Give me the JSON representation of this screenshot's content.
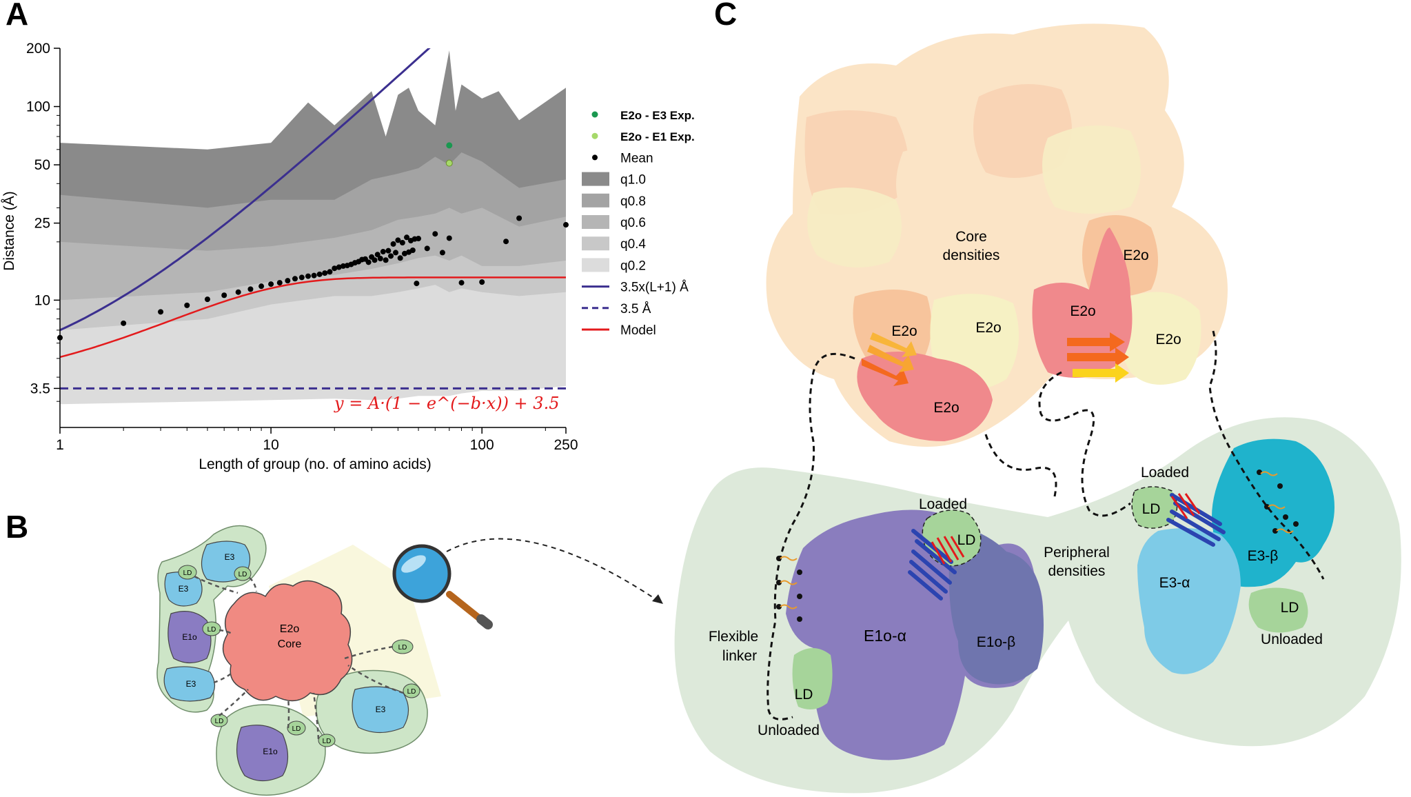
{
  "panels": {
    "a": "A",
    "b": "B",
    "c": "C"
  },
  "chart_data": {
    "type": "line",
    "xlabel": "Length of group (no. of amino acids)",
    "ylabel": "Distance (Å)",
    "xscale": "log",
    "yscale": "log",
    "xlim": [
      1,
      250
    ],
    "ylim": [
      2.2,
      200
    ],
    "xticks": [
      1,
      10,
      100,
      250
    ],
    "xtick_labels": [
      "1",
      "10",
      "100",
      "250"
    ],
    "yticks": [
      3.5,
      10,
      25,
      50,
      100,
      200
    ],
    "ytick_labels": [
      "3.5",
      "10",
      "25",
      "50",
      "100",
      "200"
    ],
    "formula": "y = A·(1 − e^(−b·x)) + 3.5",
    "legend_position": "right",
    "legend": [
      "E2o - E3 Exp.",
      "E2o - E1 Exp.",
      "Mean",
      "q1.0",
      "q0.8",
      "q0.6",
      "q0.4",
      "q0.2",
      "3.5x(L+1) Å",
      "3.5 Å",
      "Model"
    ],
    "colors": {
      "q1.0": "#8a8a8a",
      "q0.8": "#a3a3a3",
      "q0.6": "#b5b5b5",
      "q0.4": "#c8c8c8",
      "q0.2": "#dcdcdc",
      "contour": "#3b2f8f",
      "model": "#e31a1c",
      "e3": "#1a9850",
      "e1": "#a6d96a"
    },
    "series": [
      {
        "name": "Mean",
        "x": [
          1,
          2,
          3,
          4,
          5,
          6,
          7,
          8,
          9,
          10,
          11,
          12,
          13,
          14,
          15,
          16,
          17,
          18,
          19,
          20,
          21,
          22,
          23,
          24,
          25,
          26,
          27,
          28,
          29,
          30,
          31,
          32,
          33,
          34,
          35,
          36,
          37,
          38,
          39,
          40,
          41,
          42,
          43,
          44,
          45,
          46,
          47,
          48,
          49,
          50,
          55,
          60,
          65,
          70,
          80,
          100,
          130,
          150,
          250
        ],
        "y": [
          6.4,
          7.6,
          8.7,
          9.4,
          10.1,
          10.6,
          11.0,
          11.4,
          11.8,
          12.1,
          12.3,
          12.6,
          12.9,
          13.1,
          13.3,
          13.4,
          13.6,
          13.8,
          14.0,
          14.6,
          14.8,
          15.0,
          15.1,
          15.3,
          15.6,
          15.8,
          16.2,
          16.3,
          15.7,
          16.7,
          16.1,
          17.2,
          16.4,
          17.8,
          16.1,
          18.0,
          16.9,
          19.5,
          17.6,
          20.4,
          16.5,
          19.8,
          17.4,
          21.1,
          17.7,
          20.3,
          18.1,
          20.7,
          12.2,
          20.8,
          18.5,
          22.0,
          17.6,
          20.9,
          12.3,
          12.4,
          20.1,
          26.5,
          24.5
        ]
      },
      {
        "name": "Model",
        "type": "curve",
        "A": 9.6,
        "b": 0.18
      },
      {
        "name": "3.5x(L+1) Å",
        "type": "curve"
      },
      {
        "name": "3.5 Å",
        "type": "hline",
        "y": 3.5
      },
      {
        "name": "E2o - E3 Exp.",
        "x": [
          70
        ],
        "y": [
          63
        ]
      },
      {
        "name": "E2o - E1 Exp.",
        "x": [
          70
        ],
        "y": [
          51
        ]
      }
    ],
    "quantile_bands": [
      {
        "name": "q1.0",
        "x": [
          1,
          5,
          10,
          15,
          20,
          30,
          35,
          40,
          45,
          50,
          60,
          70,
          75,
          80,
          100,
          120,
          150,
          250
        ],
        "upper": [
          65,
          60,
          65,
          105,
          80,
          120,
          70,
          115,
          125,
          95,
          80,
          195,
          95,
          130,
          110,
          120,
          85,
          125
        ],
        "lower": [
          9,
          9.5,
          10,
          10.5,
          11.5,
          13,
          12,
          14,
          13,
          12,
          13,
          13,
          12,
          13,
          14,
          14,
          13,
          16
        ]
      },
      {
        "name": "q0.8",
        "x": [
          1,
          5,
          10,
          20,
          30,
          40,
          50,
          60,
          70,
          80,
          100,
          150,
          250
        ],
        "upper": [
          35,
          30,
          33,
          33,
          42,
          45,
          48,
          55,
          50,
          58,
          52,
          38,
          42
        ],
        "lower": [
          7.5,
          8,
          8.5,
          9,
          9.5,
          9,
          9,
          9.5,
          9,
          9.5,
          10,
          10.5,
          12
        ]
      },
      {
        "name": "q0.6",
        "x": [
          1,
          5,
          10,
          20,
          30,
          40,
          50,
          60,
          70,
          80,
          100,
          150,
          250
        ],
        "upper": [
          20,
          18,
          19,
          21,
          23,
          26,
          27,
          28,
          30,
          28,
          30,
          24,
          27
        ],
        "lower": [
          6,
          6.2,
          6.5,
          7,
          7.2,
          7,
          7.1,
          7,
          7.3,
          7.5,
          8,
          8.2,
          9
        ]
      },
      {
        "name": "q0.4",
        "x": [
          1,
          5,
          10,
          20,
          30,
          40,
          50,
          60,
          70,
          80,
          100,
          150,
          250
        ],
        "upper": [
          10,
          11,
          12.5,
          13.5,
          14.5,
          15.5,
          16.5,
          17,
          16,
          17,
          15,
          15,
          16
        ],
        "lower": [
          4.8,
          4.8,
          5,
          5.2,
          5.2,
          5.1,
          5.1,
          5.1,
          5.2,
          5.3,
          5.5,
          5.8,
          6
        ]
      },
      {
        "name": "q0.2",
        "x": [
          1,
          5,
          10,
          20,
          30,
          40,
          50,
          60,
          70,
          80,
          100,
          150,
          250
        ],
        "upper": [
          7,
          8,
          9.5,
          10.5,
          10.5,
          11,
          11.5,
          12,
          11,
          11.5,
          11,
          10.5,
          11
        ],
        "lower": [
          2.9,
          3.0,
          3.05,
          3.1,
          3.05,
          3.1,
          3.2,
          3.2,
          3.2,
          3.3,
          3.4,
          3.4,
          3.6
        ]
      }
    ]
  },
  "panel_b": {
    "core_label_1": "E2o",
    "core_label_2": "Core",
    "labels": {
      "e3": "E3",
      "ld": "LD",
      "e1o": "E1o"
    }
  },
  "panel_c": {
    "core_densities_1": "Core",
    "core_densities_2": "densities",
    "e2o": "E2o",
    "loaded": "Loaded",
    "ld": "LD",
    "peripheral_1": "Peripheral",
    "peripheral_2": "densities",
    "flexible_1": "Flexible",
    "flexible_2": "linker",
    "unloaded": "Unloaded",
    "e1o_alpha": "E1o-α",
    "e1o_beta": "E1o-β",
    "e3_alpha": "E3-α",
    "e3_beta": "E3-β"
  }
}
